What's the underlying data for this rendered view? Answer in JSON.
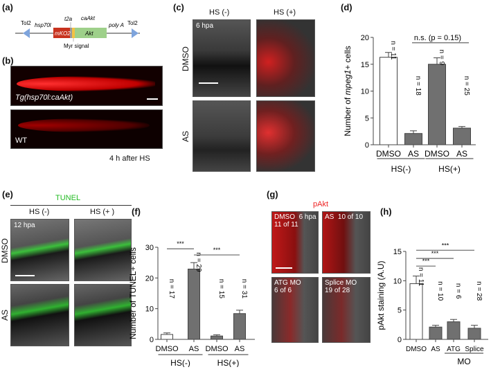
{
  "panels": {
    "a": {
      "label": "(a)",
      "tol2_left": "Tol2",
      "tol2_right": "Tol2",
      "promoter": "hsp70l",
      "t2a": "t2a",
      "caakt": "caAkt",
      "mko2": "mKO2",
      "akt": "Akt",
      "polya": "poly A",
      "myr": "Myr signal"
    },
    "b": {
      "label": "(b)",
      "transgenic": "Tg(hsp70l:caAkt)",
      "wt": "WT",
      "caption": "4 h after HS"
    },
    "c": {
      "label": "(c)",
      "col1": "HS (-)",
      "col2": "HS (+)",
      "row1": "DMSO",
      "row2": "AS",
      "time": "6 hpa"
    },
    "d": {
      "label": "(d)"
    },
    "e": {
      "label": "(e)",
      "stain": "TUNEL",
      "col1": "HS (-)",
      "col2": "HS (+ )",
      "row1": "DMSO",
      "row2": "AS",
      "time": "12 hpa"
    },
    "f": {
      "label": "(f)"
    },
    "g": {
      "label": "(g)",
      "stain": "pAkt",
      "tl_cond": "DMSO",
      "tl_time": "6 hpa",
      "tl_count": "11 of 11",
      "tr_cond": "AS",
      "tr_count": "10 of 10",
      "bl_cond": "ATG MO",
      "bl_count": "6 of 6",
      "br_cond": "Splice MO",
      "br_count": "19 of 28"
    },
    "h": {
      "label": "(h)"
    }
  },
  "colors": {
    "bar_gray": "#707070",
    "bar_white": "#ffffff",
    "tunel": "#22bb22",
    "pakt": "#ee2222",
    "arrow": "#7ea4dc",
    "mko2": "#c8321e",
    "akt": "#9ed08a",
    "myr": "#f3c243"
  },
  "chart_data": [
    {
      "type": "bar",
      "id": "d",
      "ylabel": [
        "Number of ",
        "mpeg1",
        "+ cells"
      ],
      "ylim": [
        0,
        20
      ],
      "yticks": [
        "0",
        "5",
        "10",
        "15",
        "20"
      ],
      "tickvals": [
        0,
        5,
        10,
        15,
        20
      ],
      "categories": [
        "DMSO",
        "AS",
        "DMSO",
        "AS"
      ],
      "values": [
        16.3,
        2.1,
        15.0,
        3.1
      ],
      "errors": [
        0.9,
        0.5,
        1.2,
        0.3
      ],
      "fills": [
        "white",
        "gray",
        "gray",
        "gray"
      ],
      "n_labels": [
        "n = 11",
        "n = 18",
        "n = 9",
        "n = 25"
      ],
      "groups": [
        {
          "label": "HS(-)",
          "from": 0,
          "to": 1
        },
        {
          "label": "HS(+)",
          "from": 2,
          "to": 3
        }
      ],
      "comparisons": [
        {
          "from": 1,
          "to": 3,
          "label": "n.s. (p = 0.15)",
          "y": 19
        }
      ]
    },
    {
      "type": "bar",
      "id": "f",
      "ylabel": [
        "Number of TUNEL+ cells"
      ],
      "ylim": [
        0,
        30
      ],
      "yticks": [
        "0",
        "10",
        "20",
        "30"
      ],
      "tickvals": [
        0,
        10,
        20,
        30
      ],
      "categories": [
        "DMSO",
        "AS",
        "DMSO",
        "AS"
      ],
      "values": [
        1.6,
        22.9,
        1.1,
        8.4
      ],
      "errors": [
        0.5,
        2.1,
        0.4,
        1.1
      ],
      "fills": [
        "white",
        "gray",
        "gray",
        "gray"
      ],
      "n_labels": [
        "n = 17",
        "n = 29",
        "n = 15",
        "n = 31"
      ],
      "groups": [
        {
          "label": "HS(-)",
          "from": 0,
          "to": 1
        },
        {
          "label": "HS(+)",
          "from": 2,
          "to": 3
        }
      ],
      "comparisons": [
        {
          "from": 0,
          "to": 1,
          "label": "***",
          "y": 29.5
        },
        {
          "from": 1,
          "to": 3,
          "label": "***",
          "y": 27.5
        }
      ]
    },
    {
      "type": "bar",
      "id": "h",
      "ylabel": [
        "pAkt staining (A.U)"
      ],
      "ylim": [
        0,
        15
      ],
      "yticks": [
        "0",
        "5",
        "10",
        "15"
      ],
      "tickvals": [
        0,
        5,
        10,
        15
      ],
      "categories": [
        "DMSO",
        "AS",
        "ATG",
        "Splice"
      ],
      "values": [
        9.5,
        2.1,
        3.0,
        1.9
      ],
      "errors": [
        1.3,
        0.3,
        0.4,
        0.5
      ],
      "fills": [
        "white",
        "gray",
        "gray",
        "gray"
      ],
      "n_labels": [
        "n = 11",
        "n = 10",
        "n = 6",
        "n = 28"
      ],
      "groups": [
        {
          "label": "MO",
          "from": 2,
          "to": 3
        }
      ],
      "comparisons": [
        {
          "from": 0,
          "to": 1,
          "label": "***",
          "y": 12.5
        },
        {
          "from": 0,
          "to": 2,
          "label": "***",
          "y": 13.8
        },
        {
          "from": 0,
          "to": 3,
          "label": "***",
          "y": 15.2
        }
      ]
    }
  ]
}
